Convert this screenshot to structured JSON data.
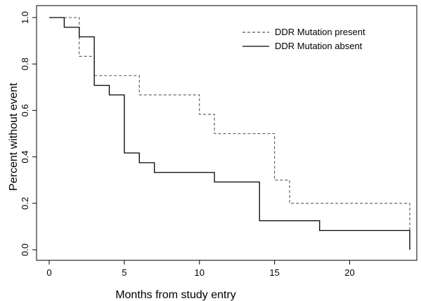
{
  "chart_data": {
    "type": "line",
    "step": true,
    "xlabel": "Months from study entry",
    "ylabel": "Percent without event",
    "xlim": [
      0,
      24.5
    ],
    "ylim": [
      0,
      1
    ],
    "xticks": [
      0,
      5,
      10,
      15,
      20
    ],
    "yticks": [
      0.0,
      0.2,
      0.4,
      0.6,
      0.8,
      1.0
    ],
    "ytick_labels": [
      "0.0",
      "0.2",
      "0.4",
      "0.6",
      "0.8",
      "1.0"
    ],
    "grid": false,
    "legend_position": "top-right",
    "series": [
      {
        "name": "DDR Mutation present",
        "line_style": "dashed",
        "color": "#555555",
        "x": [
          0,
          2,
          3,
          6,
          10,
          11,
          15,
          16,
          24,
          24
        ],
        "y": [
          1.0,
          0.833,
          0.75,
          0.667,
          0.583,
          0.5,
          0.3,
          0.2,
          0.2,
          0.0
        ]
      },
      {
        "name": "DDR Mutation absent",
        "line_style": "solid",
        "color": "#000000",
        "x": [
          0,
          1,
          2,
          3,
          4,
          5,
          6,
          7,
          11,
          14,
          18,
          24,
          24
        ],
        "y": [
          1.0,
          0.958,
          0.917,
          0.708,
          0.667,
          0.417,
          0.375,
          0.333,
          0.292,
          0.125,
          0.083,
          0.083,
          0.0
        ]
      }
    ]
  }
}
